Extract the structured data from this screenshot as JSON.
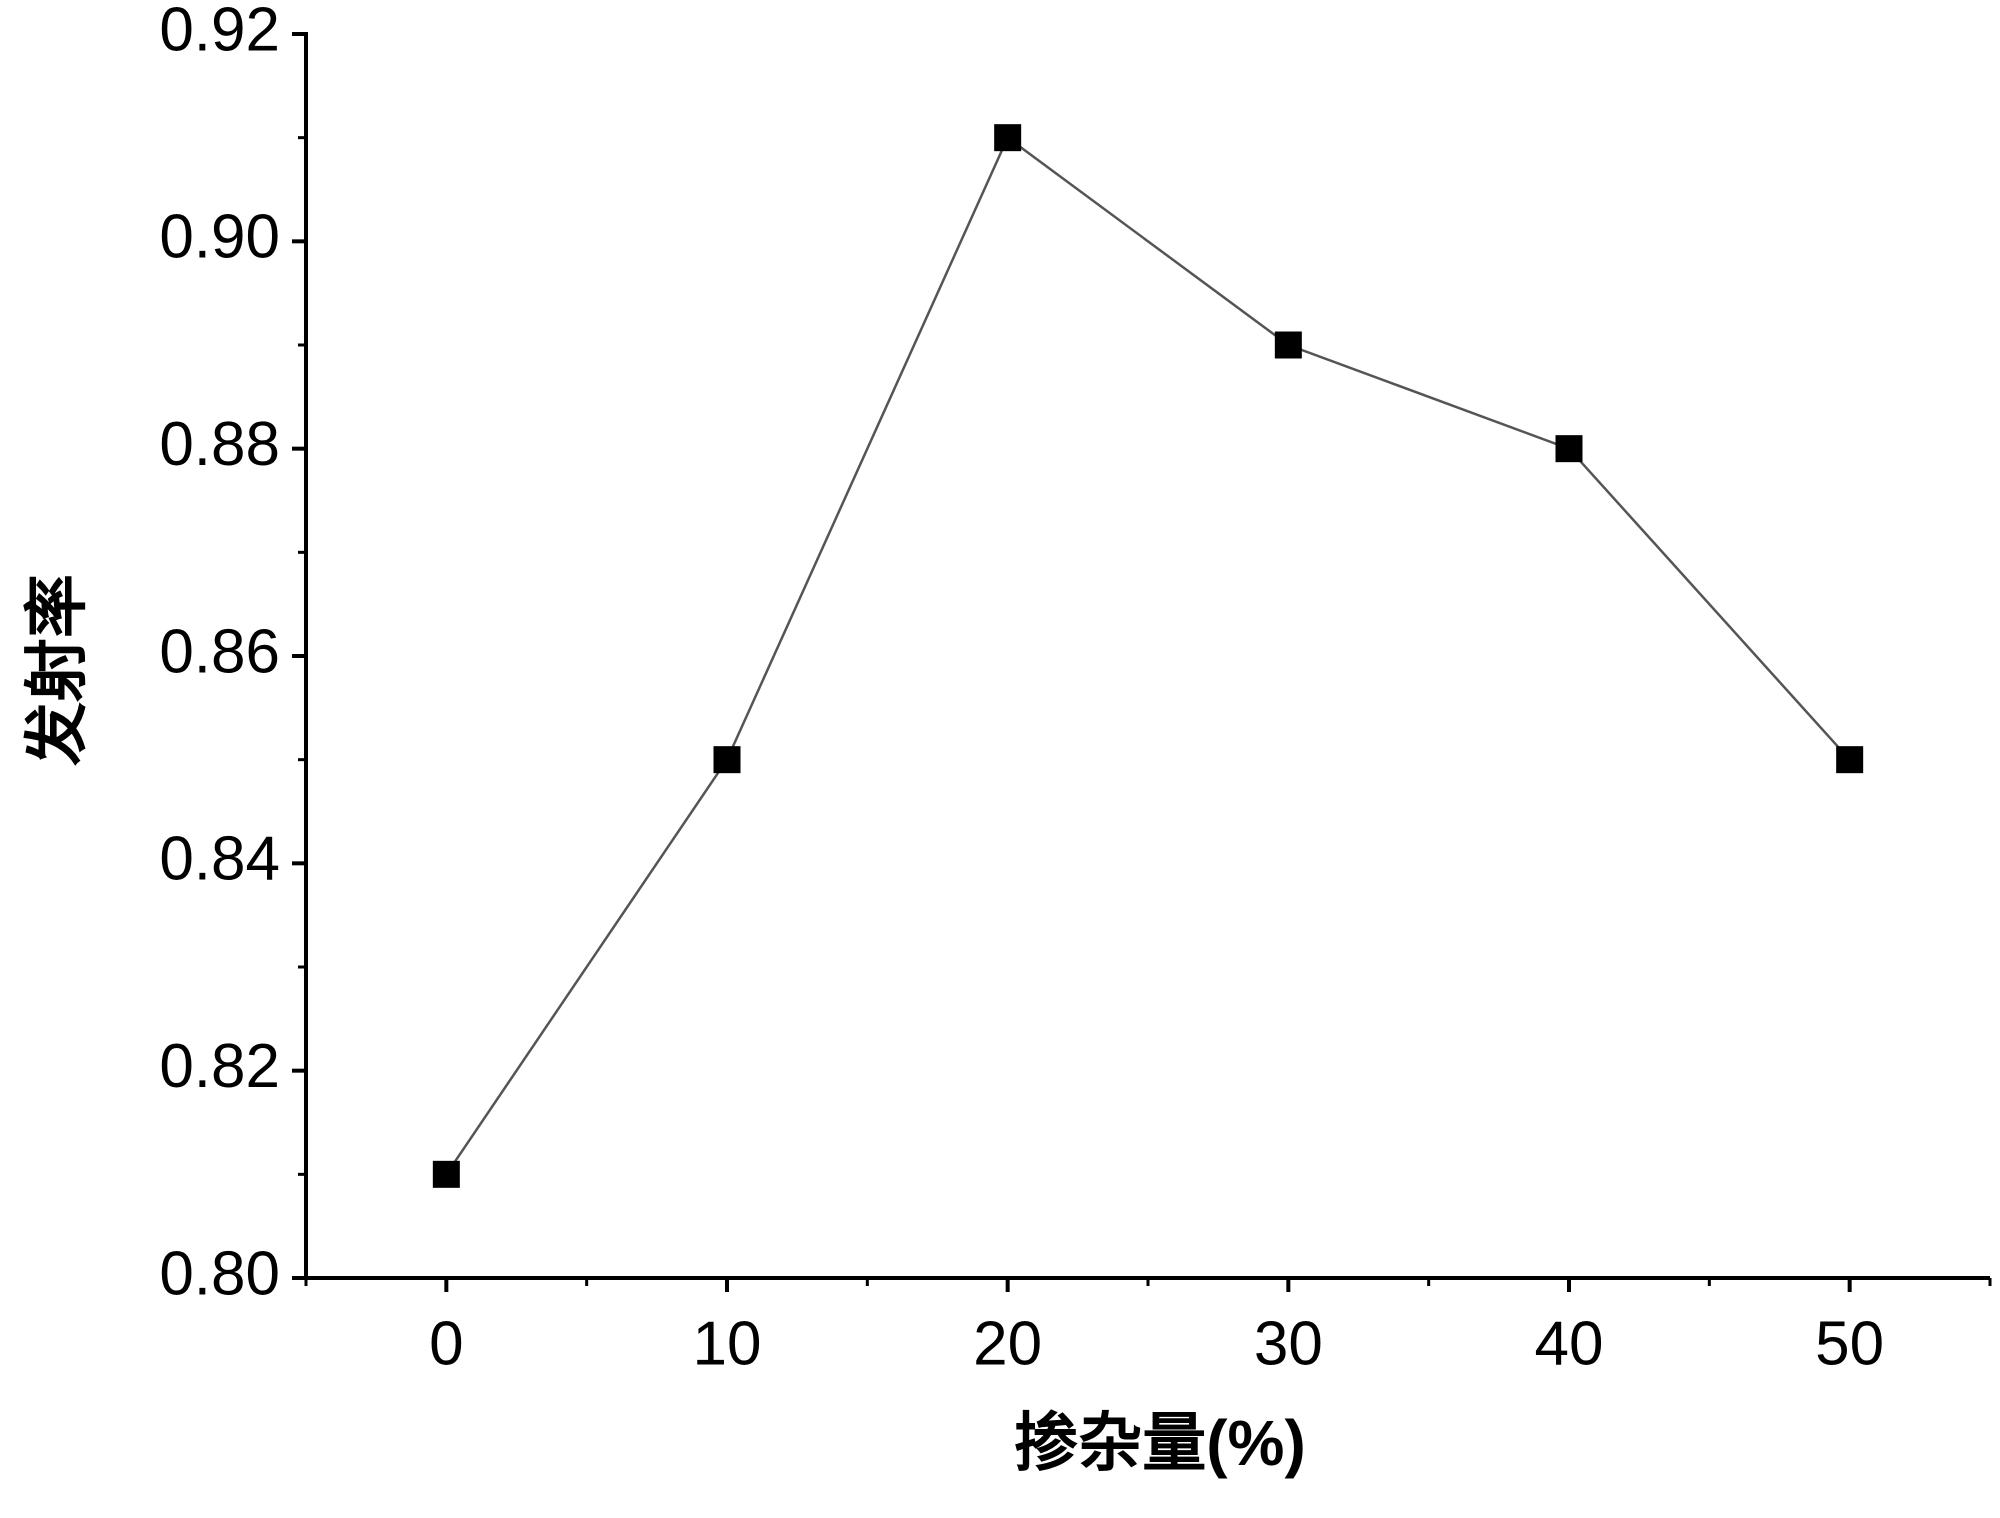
{
  "chart_data": {
    "type": "line",
    "x_label": "掺杂量(%)",
    "y_label": "发射率",
    "x": [
      0,
      10,
      20,
      30,
      40,
      50
    ],
    "series": [
      {
        "color": "#555555",
        "values": [
          0.81,
          0.85,
          0.91,
          0.89,
          0.88,
          0.85
        ]
      }
    ],
    "xlim": [
      -5,
      55
    ],
    "xticks": [
      0,
      10,
      20,
      30,
      40,
      50
    ],
    "ylim": [
      0.8,
      0.92
    ],
    "yticks": [
      {
        "value": 0.8,
        "label": "0.80"
      },
      0.82,
      0.84,
      0.86,
      0.88,
      {
        "value": 0.9,
        "label": "0.90"
      },
      0.92
    ],
    "marker_color": "#000000"
  }
}
